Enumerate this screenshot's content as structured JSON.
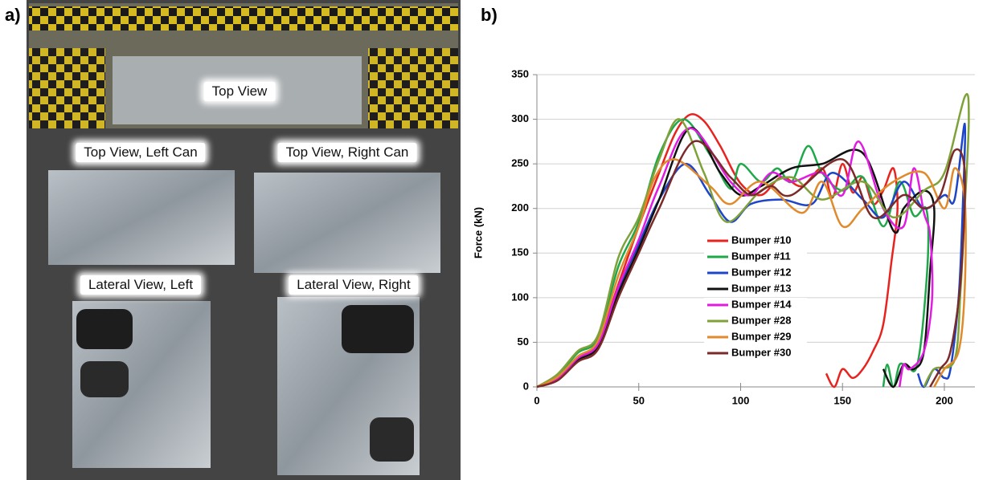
{
  "panel_labels": [
    "a)",
    "b)"
  ],
  "photo_labels": [
    "Top View",
    "Top View, Left Can",
    "Top View, Right Can",
    "Lateral View, Left",
    "Lateral View, Right"
  ],
  "chart_data": {
    "type": "line",
    "y_label": "Force (kN)",
    "xlim": [
      0,
      215
    ],
    "xticks": [
      0,
      50,
      100,
      150,
      200
    ],
    "ylim": [
      0,
      350
    ],
    "yticks": [
      0,
      50,
      100,
      150,
      200,
      250,
      300,
      350
    ],
    "grid": true,
    "series": [
      {
        "name": "Bumper #10",
        "color": "#e8231f",
        "x": [
          0,
          10,
          20,
          30,
          40,
          50,
          60,
          68,
          75,
          82,
          90,
          100,
          110,
          120,
          130,
          140,
          145,
          150,
          155,
          160,
          165,
          170,
          175,
          177,
          174,
          170,
          165,
          160,
          155,
          150,
          146,
          142
        ],
        "values": [
          0,
          10,
          32,
          50,
          115,
          180,
          240,
          285,
          305,
          298,
          270,
          228,
          215,
          235,
          225,
          245,
          212,
          250,
          218,
          235,
          205,
          220,
          245,
          200,
          140,
          70,
          40,
          20,
          10,
          20,
          0,
          15
        ]
      },
      {
        "name": "Bumper #11",
        "color": "#1fa84a",
        "x": [
          0,
          10,
          20,
          30,
          40,
          50,
          60,
          72,
          85,
          95,
          100,
          110,
          118,
          125,
          133,
          140,
          150,
          160,
          170,
          178,
          185,
          191,
          192,
          189,
          186,
          182,
          178,
          175,
          172,
          170
        ],
        "values": [
          0,
          12,
          38,
          55,
          135,
          185,
          260,
          300,
          260,
          222,
          250,
          230,
          245,
          230,
          270,
          240,
          220,
          235,
          180,
          230,
          192,
          200,
          150,
          60,
          20,
          22,
          25,
          0,
          25,
          0
        ]
      },
      {
        "name": "Bumper #12",
        "color": "#1c45c9",
        "x": [
          0,
          10,
          20,
          30,
          40,
          50,
          60,
          73,
          85,
          95,
          105,
          120,
          135,
          145,
          160,
          170,
          180,
          190,
          200,
          205,
          210,
          209,
          207,
          203,
          200,
          195,
          190,
          187
        ],
        "values": [
          0,
          8,
          30,
          48,
          110,
          160,
          210,
          250,
          215,
          185,
          205,
          210,
          205,
          240,
          210,
          190,
          230,
          200,
          215,
          210,
          295,
          200,
          100,
          20,
          10,
          20,
          0,
          15
        ]
      },
      {
        "name": "Bumper #13",
        "color": "#111111",
        "x": [
          0,
          10,
          20,
          30,
          40,
          50,
          60,
          75,
          90,
          100,
          110,
          125,
          140,
          160,
          175,
          180,
          190,
          195,
          193,
          190,
          185,
          180,
          175,
          170
        ],
        "values": [
          0,
          8,
          30,
          45,
          105,
          155,
          210,
          290,
          240,
          215,
          225,
          245,
          250,
          262,
          175,
          200,
          220,
          200,
          130,
          40,
          20,
          25,
          0,
          20
        ]
      },
      {
        "name": "Bumper #14",
        "color": "#e21be0",
        "x": [
          0,
          10,
          20,
          30,
          40,
          50,
          60,
          75,
          95,
          105,
          115,
          125,
          140,
          150,
          158,
          170,
          180,
          185,
          190,
          193,
          194,
          190,
          183,
          180,
          178
        ],
        "values": [
          0,
          9,
          32,
          48,
          112,
          165,
          225,
          290,
          230,
          215,
          240,
          230,
          240,
          215,
          275,
          200,
          180,
          245,
          195,
          170,
          100,
          40,
          20,
          25,
          0
        ]
      },
      {
        "name": "Bumper #28",
        "color": "#7fa13a",
        "x": [
          0,
          10,
          20,
          30,
          40,
          50,
          60,
          70,
          82,
          93,
          110,
          125,
          140,
          160,
          175,
          190,
          200,
          210,
          212,
          210,
          208,
          205,
          195,
          190
        ],
        "values": [
          0,
          14,
          40,
          58,
          145,
          190,
          255,
          300,
          240,
          185,
          220,
          235,
          210,
          230,
          190,
          220,
          240,
          325,
          300,
          200,
          110,
          30,
          20,
          0
        ]
      },
      {
        "name": "Bumper #29",
        "color": "#e08a2c",
        "x": [
          0,
          10,
          20,
          30,
          40,
          50,
          58,
          68,
          85,
          95,
          110,
          130,
          140,
          150,
          160,
          175,
          190,
          200,
          205,
          210,
          210,
          207,
          200,
          195
        ],
        "values": [
          0,
          11,
          34,
          52,
          125,
          180,
          235,
          255,
          225,
          205,
          230,
          195,
          230,
          180,
          200,
          230,
          240,
          200,
          245,
          210,
          110,
          40,
          20,
          0
        ]
      },
      {
        "name": "Bumper #30",
        "color": "#7b2a2a",
        "x": [
          0,
          10,
          20,
          30,
          40,
          50,
          60,
          77,
          95,
          105,
          115,
          125,
          150,
          165,
          180,
          190,
          198,
          205,
          210,
          208,
          203,
          198,
          193
        ],
        "values": [
          0,
          7,
          28,
          42,
          100,
          150,
          200,
          275,
          235,
          215,
          225,
          215,
          255,
          190,
          215,
          200,
          215,
          265,
          240,
          120,
          40,
          20,
          0
        ]
      }
    ]
  }
}
